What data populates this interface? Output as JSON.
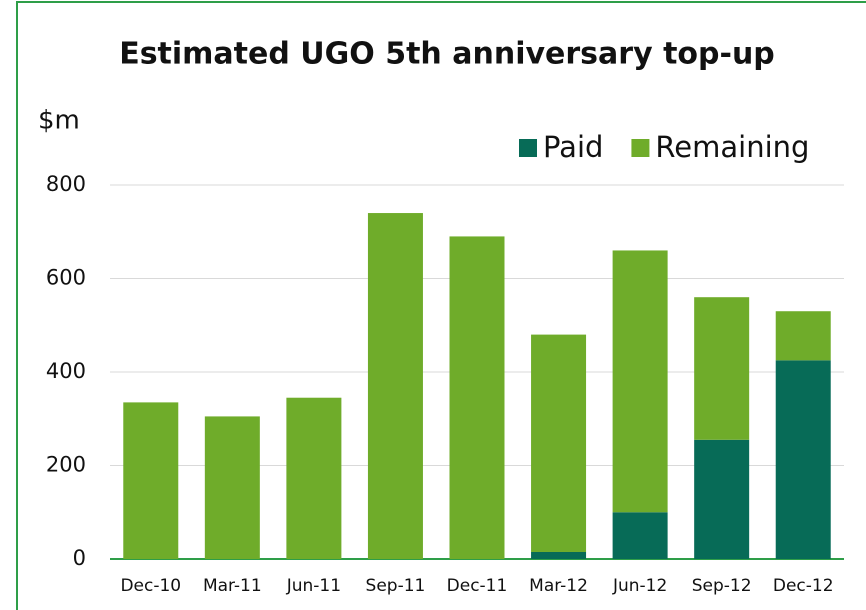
{
  "chart_data": {
    "type": "stacked_bar",
    "title": "Estimated UGO 5th anniversary top-up",
    "y_label": "$m",
    "categories": [
      "Dec-10",
      "Mar-11",
      "Jun-11",
      "Sep-11",
      "Dec-11",
      "Mar-12",
      "Jun-12",
      "Sep-12",
      "Dec-12"
    ],
    "series": [
      {
        "name": "Paid",
        "color": "#076b57",
        "values": [
          0,
          0,
          0,
          0,
          0,
          15,
          100,
          255,
          425
        ]
      },
      {
        "name": "Remaining",
        "color": "#6fac2a",
        "values": [
          335,
          305,
          345,
          740,
          690,
          465,
          560,
          305,
          105
        ]
      }
    ],
    "ylim": [
      0,
      800
    ],
    "yticks": [
      0,
      200,
      400,
      600,
      800
    ],
    "grid": true,
    "legend": "top-right"
  }
}
